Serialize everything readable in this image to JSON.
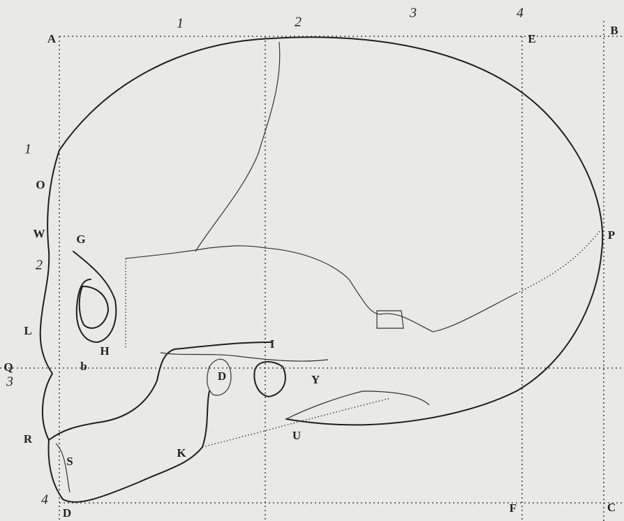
{
  "labels": [
    "A",
    "1",
    "2",
    "3",
    "4",
    "E",
    "B",
    "1",
    "O",
    "W",
    "G",
    "P",
    "2",
    "L",
    "H",
    "I",
    "Q",
    "b",
    "D",
    "Y",
    "3",
    "R",
    "U",
    "K",
    "S",
    "4",
    "D",
    "F",
    "C"
  ]
}
